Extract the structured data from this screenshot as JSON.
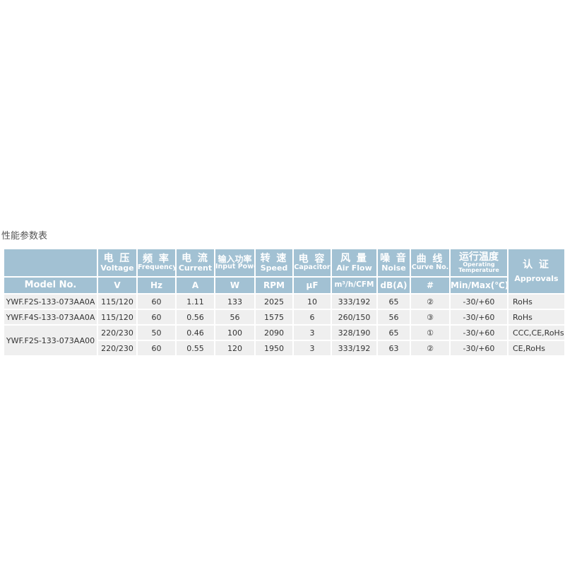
{
  "title": "性能参数表",
  "header": {
    "model": "Model No.",
    "columns": [
      {
        "zh": "电 压",
        "en": "Voltage",
        "unit": "V"
      },
      {
        "zh": "频 率",
        "en": "Frequency",
        "unit": "Hz"
      },
      {
        "zh": "电 流",
        "en": "Current",
        "unit": "A"
      },
      {
        "zh": "输入功率",
        "en": "Input Power",
        "unit": "W"
      },
      {
        "zh": "转 速",
        "en": "Speed",
        "unit": "RPM"
      },
      {
        "zh": "电 容",
        "en": "Capacitor",
        "unit": "µF"
      },
      {
        "zh": "风 量",
        "en": "Air Flow",
        "unit": "m³/h/CFM"
      },
      {
        "zh": "噪 音",
        "en": "Noise",
        "unit": "dB(A)"
      },
      {
        "zh": "曲 线",
        "en": "Curve No.",
        "unit": "#"
      },
      {
        "zh": "运行温度",
        "en": "Operating Temperature",
        "unit": "Min/Max(℃)"
      },
      {
        "zh": "认 证",
        "en": "Approvals"
      }
    ]
  },
  "rows": [
    {
      "model": "YWF.F2S-133-073AA0A",
      "v": "115/120",
      "hz": "60",
      "a": "1.11",
      "w": "133",
      "rpm": "2025",
      "uf": "10",
      "flow": "333/192",
      "noise": "65",
      "curve": "②",
      "temp": "-30/+60",
      "appr": "RoHs"
    },
    {
      "model": "YWF.F4S-133-073AA0A",
      "v": "115/120",
      "hz": "60",
      "a": "0.56",
      "w": "56",
      "rpm": "1575",
      "uf": "6",
      "flow": "260/150",
      "noise": "56",
      "curve": "③",
      "temp": "-30/+60",
      "appr": "RoHs"
    },
    {
      "model": "YWF.F2S-133-073AA00",
      "v": "220/230",
      "hz": "50",
      "a": "0.46",
      "w": "100",
      "rpm": "2090",
      "uf": "3",
      "flow": "328/190",
      "noise": "65",
      "curve": "①",
      "temp": "-30/+60",
      "appr": "CCC,CE,RoHs"
    },
    {
      "model": "",
      "v": "220/230",
      "hz": "60",
      "a": "0.55",
      "w": "120",
      "rpm": "1950",
      "uf": "3",
      "flow": "333/192",
      "noise": "63",
      "curve": "②",
      "temp": "-30/+60",
      "appr": "CE,RoHs"
    }
  ]
}
